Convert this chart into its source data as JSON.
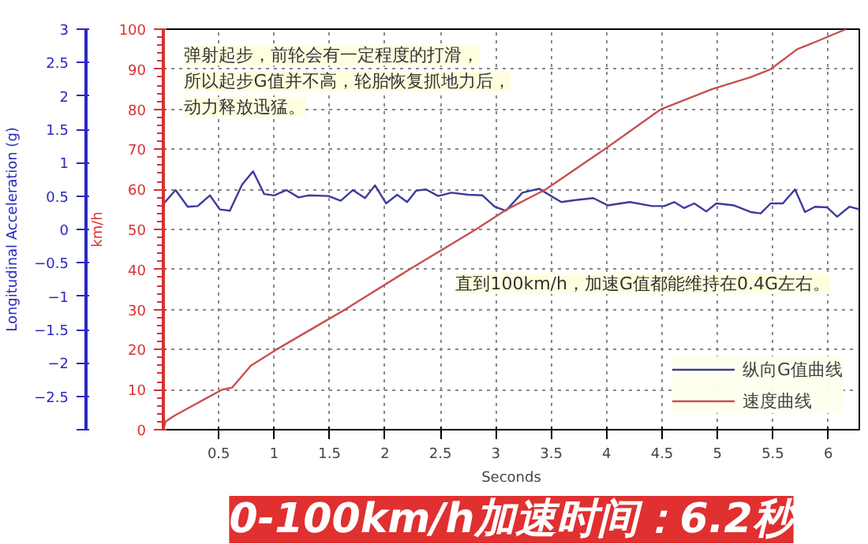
{
  "chart_data": {
    "type": "line",
    "title": "0-100km/h加速时间：6.2秒",
    "xlabel": "Seconds",
    "ylabel": "km/h",
    "y2label": "Longitudinal Acceleration (g)",
    "xlim": [
      0,
      6.28
    ],
    "xticks": [
      0.5,
      1,
      1.5,
      2,
      2.5,
      3,
      3.5,
      4,
      4.5,
      5,
      5.5,
      6
    ],
    "ylim": [
      0,
      100
    ],
    "yticks": [
      0,
      10,
      20,
      30,
      40,
      50,
      60,
      70,
      80,
      90,
      100
    ],
    "y2lim": [
      -3,
      3
    ],
    "y2ticks": [
      {
        "value": -3,
        "label": null
      },
      -2.5,
      -2,
      -1.5,
      -1,
      -0.5,
      0,
      0.5,
      1,
      1.5,
      2,
      2.5,
      3
    ],
    "grid": true,
    "legend": "bottom right",
    "annotations": [
      "弹射起步，前轮会有一定程度的打滑，",
      "所以起步G值并不高，轮胎恢复抓地力后，",
      "动力释放迅猛。",
      "直到100km/h，加速G值都能维持在0.4G左右。"
    ],
    "series": [
      {
        "name": "纵向G值曲线",
        "color": "#3c3c9c",
        "axis": "y2",
        "x": [
          0.0,
          0.11,
          0.22,
          0.31,
          0.42,
          0.51,
          0.6,
          0.71,
          0.81,
          0.91,
          1.0,
          1.11,
          1.22,
          1.31,
          1.49,
          1.6,
          1.71,
          1.82,
          1.91,
          2.01,
          2.11,
          2.2,
          2.28,
          2.37,
          2.48,
          2.6,
          2.75,
          2.88,
          2.99,
          3.09,
          3.24,
          3.39,
          3.59,
          3.72,
          3.88,
          4.01,
          4.21,
          4.41,
          4.52,
          4.61,
          4.7,
          4.79,
          4.9,
          4.99,
          5.15,
          5.3,
          5.39,
          5.48,
          5.59,
          5.7,
          5.79,
          5.88,
          5.99,
          6.08,
          6.19,
          6.28
        ],
        "values": [
          0.38,
          0.59,
          0.34,
          0.35,
          0.51,
          0.3,
          0.28,
          0.67,
          0.87,
          0.53,
          0.51,
          0.59,
          0.48,
          0.51,
          0.5,
          0.43,
          0.59,
          0.47,
          0.66,
          0.39,
          0.52,
          0.41,
          0.58,
          0.6,
          0.5,
          0.55,
          0.52,
          0.51,
          0.34,
          0.28,
          0.55,
          0.61,
          0.41,
          0.44,
          0.47,
          0.36,
          0.41,
          0.35,
          0.35,
          0.41,
          0.32,
          0.39,
          0.27,
          0.39,
          0.36,
          0.26,
          0.24,
          0.39,
          0.39,
          0.6,
          0.26,
          0.34,
          0.33,
          0.19,
          0.34,
          0.3
        ]
      },
      {
        "name": "速度曲线",
        "color": "#c85050",
        "x": [
          0,
          0.02,
          0.1,
          0.53,
          0.62,
          0.79,
          1.02,
          1.64,
          2.22,
          2.82,
          3.1,
          3.45,
          3.98,
          4.49,
          4.95,
          5.3,
          5.48,
          5.72,
          5.9,
          6.16
        ],
        "values": [
          0,
          2,
          3.5,
          10,
          10.5,
          16,
          20,
          30,
          40,
          50,
          55,
          60,
          70,
          80,
          85,
          88,
          90,
          95,
          97,
          100
        ]
      }
    ]
  }
}
